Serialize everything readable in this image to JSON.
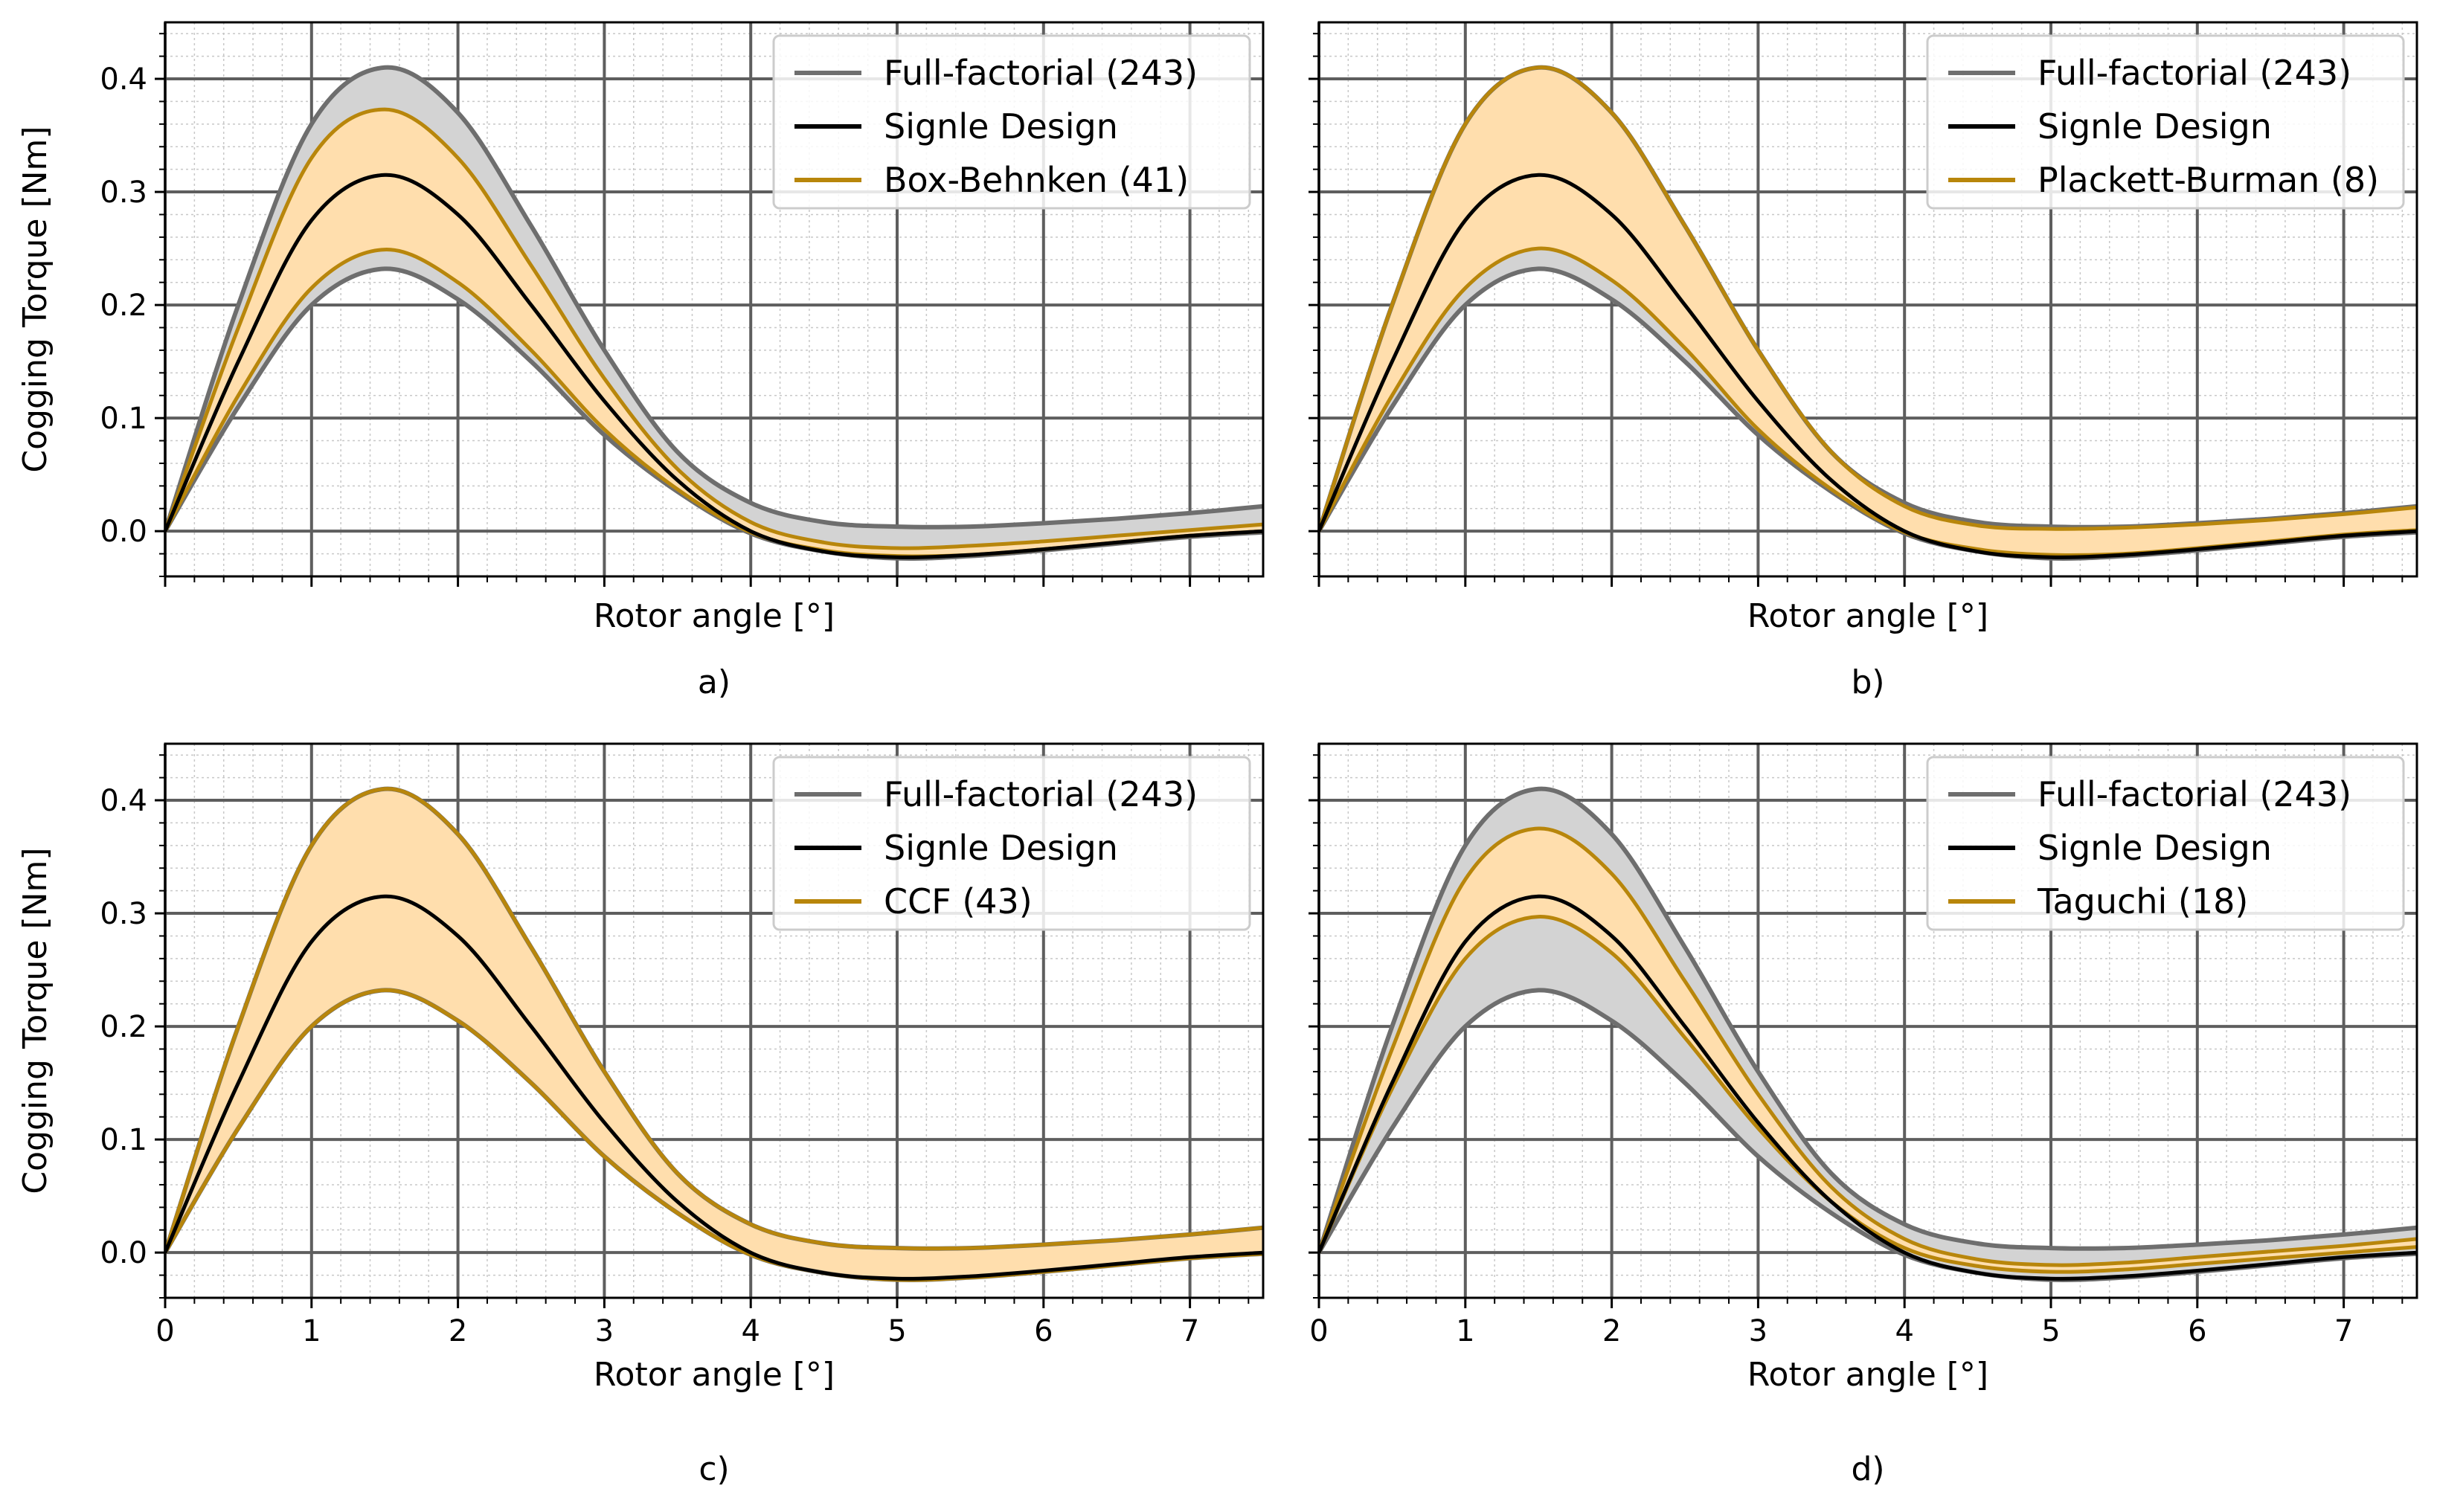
{
  "figure": {
    "panels": [
      "a)",
      "b)",
      "c)",
      "d)"
    ]
  },
  "colors": {
    "full_factorial_line": "#6e6e6e",
    "full_factorial_fill": "#d3d3d3",
    "single_design": "#000000",
    "design_line": "#b8860b",
    "design_fill": "#ffdead",
    "grid_major": "#5e5e5e",
    "grid_minor": "#c8c8c8"
  },
  "chart_data": [
    {
      "type": "line",
      "panel_label": "a)",
      "xlabel": "Rotor angle [°]",
      "ylabel": "Cogging Torque [Nm]",
      "xlim": [
        0,
        7.5
      ],
      "ylim": [
        -0.04,
        0.45
      ],
      "x_ticks_labeled": false,
      "x_ticks": [
        0,
        1,
        2,
        3,
        4,
        5,
        6,
        7
      ],
      "y_ticks": [
        0.0,
        0.1,
        0.2,
        0.3,
        0.4
      ],
      "y_tick_labels": [
        "0.0",
        "0.1",
        "0.2",
        "0.3",
        "0.4"
      ],
      "grid": true,
      "legend_position": "top-right",
      "legend": [
        "Full-factorial (243)",
        "Signle Design",
        "Box-Behnken (41)"
      ],
      "x": [
        0,
        0.5,
        1.0,
        1.5,
        2.0,
        2.5,
        3.0,
        3.5,
        4.0,
        4.5,
        5.0,
        5.5,
        6.0,
        6.5,
        7.0,
        7.5
      ],
      "full_factorial_upper": [
        0,
        0.2,
        0.36,
        0.41,
        0.37,
        0.27,
        0.16,
        0.07,
        0.025,
        0.008,
        0.004,
        0.004,
        0.007,
        0.011,
        0.016,
        0.022
      ],
      "full_factorial_lower": [
        0,
        0.11,
        0.2,
        0.232,
        0.205,
        0.15,
        0.085,
        0.035,
        -0.002,
        -0.018,
        -0.024,
        -0.022,
        -0.017,
        -0.011,
        -0.005,
        -0.001
      ],
      "single_design": [
        0,
        0.15,
        0.275,
        0.315,
        0.28,
        0.2,
        0.115,
        0.045,
        0.0,
        -0.018,
        -0.023,
        -0.021,
        -0.016,
        -0.01,
        -0.004,
        0.0
      ],
      "design_upper": [
        0,
        0.18,
        0.33,
        0.373,
        0.33,
        0.235,
        0.135,
        0.055,
        0.008,
        -0.01,
        -0.015,
        -0.013,
        -0.009,
        -0.004,
        0.001,
        0.006
      ],
      "design_lower": [
        0,
        0.12,
        0.215,
        0.249,
        0.22,
        0.16,
        0.09,
        0.037,
        -0.001,
        -0.017,
        -0.022,
        -0.021,
        -0.016,
        -0.01,
        -0.004,
        0.0
      ]
    },
    {
      "type": "line",
      "panel_label": "b)",
      "xlabel": "Rotor angle [°]",
      "ylabel": "",
      "xlim": [
        0,
        7.5
      ],
      "ylim": [
        -0.04,
        0.45
      ],
      "x_ticks_labeled": false,
      "x_ticks": [
        0,
        1,
        2,
        3,
        4,
        5,
        6,
        7
      ],
      "y_ticks": [
        0.0,
        0.1,
        0.2,
        0.3,
        0.4
      ],
      "y_tick_labels": [],
      "grid": true,
      "legend_position": "top-right",
      "legend": [
        "Full-factorial (243)",
        "Signle Design",
        "Plackett-Burman (8)"
      ],
      "x": [
        0,
        0.5,
        1.0,
        1.5,
        2.0,
        2.5,
        3.0,
        3.5,
        4.0,
        4.5,
        5.0,
        5.5,
        6.0,
        6.5,
        7.0,
        7.5
      ],
      "full_factorial_upper": [
        0,
        0.2,
        0.36,
        0.41,
        0.37,
        0.27,
        0.16,
        0.07,
        0.025,
        0.008,
        0.004,
        0.004,
        0.007,
        0.011,
        0.016,
        0.022
      ],
      "full_factorial_lower": [
        0,
        0.11,
        0.2,
        0.232,
        0.205,
        0.15,
        0.085,
        0.035,
        -0.002,
        -0.018,
        -0.024,
        -0.022,
        -0.017,
        -0.011,
        -0.005,
        -0.001
      ],
      "single_design": [
        0,
        0.15,
        0.275,
        0.315,
        0.28,
        0.2,
        0.115,
        0.045,
        0.0,
        -0.018,
        -0.023,
        -0.021,
        -0.016,
        -0.01,
        -0.004,
        0.0
      ],
      "design_upper": [
        0,
        0.2,
        0.36,
        0.41,
        0.37,
        0.27,
        0.16,
        0.07,
        0.022,
        0.005,
        0.002,
        0.003,
        0.006,
        0.01,
        0.015,
        0.021
      ],
      "design_lower": [
        0,
        0.12,
        0.215,
        0.25,
        0.222,
        0.162,
        0.09,
        0.037,
        -0.001,
        -0.016,
        -0.021,
        -0.02,
        -0.015,
        -0.009,
        -0.003,
        0.001
      ]
    },
    {
      "type": "line",
      "panel_label": "c)",
      "xlabel": "Rotor angle [°]",
      "ylabel": "Cogging Torque [Nm]",
      "xlim": [
        0,
        7.5
      ],
      "ylim": [
        -0.04,
        0.45
      ],
      "x_ticks_labeled": true,
      "x_ticks": [
        0,
        1,
        2,
        3,
        4,
        5,
        6,
        7
      ],
      "x_tick_labels": [
        "0",
        "1",
        "2",
        "3",
        "4",
        "5",
        "6",
        "7"
      ],
      "y_ticks": [
        0.0,
        0.1,
        0.2,
        0.3,
        0.4
      ],
      "y_tick_labels": [
        "0.0",
        "0.1",
        "0.2",
        "0.3",
        "0.4"
      ],
      "grid": true,
      "legend_position": "top-right",
      "legend": [
        "Full-factorial (243)",
        "Signle Design",
        "CCF (43)"
      ],
      "x": [
        0,
        0.5,
        1.0,
        1.5,
        2.0,
        2.5,
        3.0,
        3.5,
        4.0,
        4.5,
        5.0,
        5.5,
        6.0,
        6.5,
        7.0,
        7.5
      ],
      "full_factorial_upper": [
        0,
        0.2,
        0.36,
        0.41,
        0.37,
        0.27,
        0.16,
        0.07,
        0.025,
        0.008,
        0.004,
        0.004,
        0.007,
        0.011,
        0.016,
        0.022
      ],
      "full_factorial_lower": [
        0,
        0.11,
        0.2,
        0.232,
        0.205,
        0.15,
        0.085,
        0.035,
        -0.002,
        -0.018,
        -0.024,
        -0.022,
        -0.017,
        -0.011,
        -0.005,
        -0.001
      ],
      "single_design": [
        0,
        0.15,
        0.275,
        0.315,
        0.28,
        0.2,
        0.115,
        0.045,
        0.0,
        -0.018,
        -0.023,
        -0.021,
        -0.016,
        -0.01,
        -0.004,
        0.0
      ],
      "design_upper": [
        0,
        0.2,
        0.36,
        0.41,
        0.37,
        0.27,
        0.16,
        0.07,
        0.025,
        0.008,
        0.004,
        0.004,
        0.007,
        0.011,
        0.016,
        0.022
      ],
      "design_lower": [
        0,
        0.11,
        0.2,
        0.232,
        0.205,
        0.15,
        0.085,
        0.035,
        -0.002,
        -0.018,
        -0.024,
        -0.022,
        -0.017,
        -0.011,
        -0.005,
        -0.001
      ]
    },
    {
      "type": "line",
      "panel_label": "d)",
      "xlabel": "Rotor angle [°]",
      "ylabel": "",
      "xlim": [
        0,
        7.5
      ],
      "ylim": [
        -0.04,
        0.45
      ],
      "x_ticks_labeled": true,
      "x_ticks": [
        0,
        1,
        2,
        3,
        4,
        5,
        6,
        7
      ],
      "x_tick_labels": [
        "0",
        "1",
        "2",
        "3",
        "4",
        "5",
        "6",
        "7"
      ],
      "y_ticks": [
        0.0,
        0.1,
        0.2,
        0.3,
        0.4
      ],
      "y_tick_labels": [],
      "grid": true,
      "legend_position": "top-right",
      "legend": [
        "Full-factorial (243)",
        "Signle Design",
        "Taguchi (18)"
      ],
      "x": [
        0,
        0.5,
        1.0,
        1.5,
        2.0,
        2.5,
        3.0,
        3.5,
        4.0,
        4.5,
        5.0,
        5.5,
        6.0,
        6.5,
        7.0,
        7.5
      ],
      "full_factorial_upper": [
        0,
        0.2,
        0.36,
        0.41,
        0.37,
        0.27,
        0.16,
        0.07,
        0.025,
        0.008,
        0.004,
        0.004,
        0.007,
        0.011,
        0.016,
        0.022
      ],
      "full_factorial_lower": [
        0,
        0.11,
        0.2,
        0.232,
        0.205,
        0.15,
        0.085,
        0.035,
        -0.002,
        -0.018,
        -0.024,
        -0.022,
        -0.017,
        -0.011,
        -0.005,
        -0.001
      ],
      "single_design": [
        0,
        0.15,
        0.275,
        0.315,
        0.28,
        0.2,
        0.115,
        0.045,
        0.0,
        -0.018,
        -0.023,
        -0.021,
        -0.016,
        -0.01,
        -0.004,
        0.0
      ],
      "design_upper": [
        0,
        0.18,
        0.33,
        0.375,
        0.335,
        0.24,
        0.14,
        0.058,
        0.012,
        -0.006,
        -0.011,
        -0.009,
        -0.004,
        0.001,
        0.006,
        0.012
      ],
      "design_lower": [
        0,
        0.145,
        0.26,
        0.297,
        0.265,
        0.19,
        0.11,
        0.045,
        0.004,
        -0.012,
        -0.017,
        -0.015,
        -0.01,
        -0.005,
        0.0,
        0.005
      ]
    }
  ]
}
